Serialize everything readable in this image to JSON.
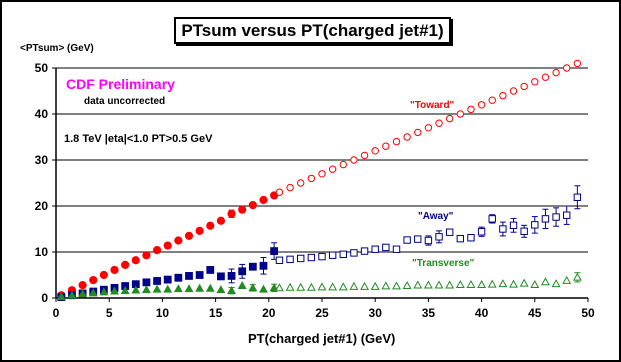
{
  "chart_data": {
    "type": "scatter",
    "title": "PTsum versus PT(charged jet#1)",
    "ylabel": "<PTsum> (GeV)",
    "xlabel": "PT(charged jet#1)  (GeV)",
    "xlim": [
      0,
      50
    ],
    "ylim": [
      0,
      50
    ],
    "xticks": [
      0,
      5,
      10,
      15,
      20,
      25,
      30,
      35,
      40,
      45,
      50
    ],
    "yticks": [
      0,
      10,
      20,
      30,
      40,
      50
    ],
    "grid": "horizontal",
    "annotations": {
      "main": "CDF Preliminary",
      "sub": "data uncorrected",
      "cut": "1.8 TeV |eta|<1.0 PT>0.5 GeV"
    },
    "series": [
      {
        "name": "\"Toward\"",
        "color": "#ff0000",
        "marker": "filled-circle",
        "x": [
          0.5,
          1.5,
          2.5,
          3.5,
          4.5,
          5.5,
          6.5,
          7.5,
          8.5,
          9.5,
          10.5,
          11.5,
          12.5,
          13.5,
          14.5,
          15.5,
          16.5,
          17.5,
          18.5,
          19.5,
          20.5
        ],
        "y": [
          0.6,
          1.7,
          2.8,
          3.9,
          5.0,
          6.1,
          7.2,
          8.2,
          9.3,
          10.4,
          11.4,
          12.5,
          13.5,
          14.6,
          15.7,
          16.8,
          18.3,
          19.2,
          20.2,
          21.3,
          22.3
        ],
        "yerr": [
          0,
          0,
          0,
          0,
          0,
          0,
          0,
          0,
          0,
          0,
          0,
          0,
          0,
          0,
          0,
          0,
          0.8,
          0,
          0,
          0,
          0
        ]
      },
      {
        "name": "\"Toward\"",
        "color": "#ff0000",
        "marker": "open-circle",
        "x": [
          21,
          22,
          23,
          24,
          25,
          26,
          27,
          28,
          29,
          30,
          31,
          32,
          33,
          34,
          35,
          36,
          37,
          38,
          39,
          40,
          41,
          42,
          43,
          44,
          45,
          46,
          47,
          48,
          49
        ],
        "y": [
          23.0,
          24.0,
          25.0,
          26.0,
          27.0,
          28.0,
          29.0,
          30.0,
          31.0,
          32.0,
          33.0,
          34.0,
          35.0,
          36.0,
          37.0,
          38.0,
          39.0,
          40.0,
          41.0,
          42.0,
          43.0,
          44.0,
          45.0,
          46.0,
          47.0,
          48.0,
          49.0,
          50.0,
          51.0
        ]
      },
      {
        "name": "\"Away\"",
        "color": "#00008b",
        "marker": "filled-square",
        "x": [
          0.5,
          1.5,
          2.5,
          3.5,
          4.5,
          5.5,
          6.5,
          7.5,
          8.5,
          9.5,
          10.5,
          11.5,
          12.5,
          13.5,
          14.5,
          15.5,
          16.5,
          17.5,
          18.5,
          19.5,
          20.5
        ],
        "y": [
          0.2,
          0.6,
          1.0,
          1.4,
          1.8,
          2.2,
          2.6,
          3.0,
          3.4,
          3.7,
          4.0,
          4.4,
          4.8,
          5.0,
          6.1,
          4.7,
          4.8,
          5.8,
          6.8,
          7.0,
          10.2
        ],
        "yerr": [
          0,
          0,
          0,
          0,
          0,
          0,
          0,
          0,
          0,
          0,
          0,
          0,
          0,
          0,
          0,
          0,
          1.5,
          1.5,
          0,
          1.8,
          1.8
        ]
      },
      {
        "name": "\"Away\"",
        "color": "#00008b",
        "marker": "open-square",
        "x": [
          21,
          22,
          23,
          24,
          25,
          26,
          27,
          28,
          29,
          30,
          31,
          32,
          33,
          34,
          35,
          36,
          37,
          38,
          39,
          40,
          41,
          42,
          43,
          44,
          45,
          46,
          47,
          48,
          49
        ],
        "y": [
          8.2,
          8.4,
          8.6,
          8.8,
          9.0,
          9.3,
          9.5,
          9.8,
          10.2,
          10.6,
          11.0,
          10.6,
          12.6,
          12.8,
          12.5,
          13.3,
          14.3,
          12.9,
          13.1,
          14.4,
          17.2,
          15.0,
          15.8,
          14.5,
          15.9,
          17.2,
          17.6,
          18.0,
          21.9
        ],
        "yerr": [
          0,
          0,
          0,
          0,
          0,
          0,
          0,
          0,
          0,
          0,
          0,
          0,
          0,
          0,
          1.0,
          1.3,
          0,
          0,
          0,
          1.0,
          0.9,
          1.5,
          1.5,
          1.3,
          1.8,
          2.1,
          2.0,
          2.0,
          2.5
        ]
      },
      {
        "name": "\"Transverse\"",
        "color": "#228b22",
        "marker": "filled-triangle",
        "x": [
          0.5,
          1.5,
          2.5,
          3.5,
          4.5,
          5.5,
          6.5,
          7.5,
          8.5,
          9.5,
          10.5,
          11.5,
          12.5,
          13.5,
          14.5,
          15.5,
          16.5,
          17.5,
          18.5,
          19.5,
          20.5
        ],
        "y": [
          0.3,
          0.6,
          0.9,
          1.1,
          1.3,
          1.5,
          1.6,
          1.7,
          1.8,
          1.9,
          1.9,
          2.0,
          2.0,
          2.1,
          2.1,
          1.8,
          1.6,
          2.7,
          2.2,
          1.9,
          2.2
        ],
        "yerr": [
          0,
          0,
          0,
          0,
          0,
          0,
          0,
          0,
          0,
          0,
          0,
          0,
          0,
          0,
          0,
          0,
          0.7,
          0,
          0.7,
          0,
          0.8
        ]
      },
      {
        "name": "\"Transverse\"",
        "color": "#228b22",
        "marker": "open-triangle",
        "x": [
          21,
          22,
          23,
          24,
          25,
          26,
          27,
          28,
          29,
          30,
          31,
          32,
          33,
          34,
          35,
          36,
          37,
          38,
          39,
          40,
          41,
          42,
          43,
          44,
          45,
          46,
          47,
          48,
          49
        ],
        "y": [
          2.2,
          2.3,
          2.3,
          2.3,
          2.4,
          2.4,
          2.4,
          2.5,
          2.5,
          2.5,
          2.6,
          2.6,
          2.7,
          2.8,
          2.8,
          2.8,
          2.8,
          2.9,
          2.9,
          2.9,
          3.0,
          3.1,
          3.0,
          3.2,
          2.9,
          3.5,
          3.1,
          3.8,
          4.5
        ],
        "yerr": [
          0,
          0,
          0,
          0,
          0,
          0,
          0,
          0,
          0,
          0,
          0,
          0,
          0,
          0,
          0,
          0,
          0,
          0,
          0,
          0,
          0,
          0,
          0,
          0,
          0,
          0,
          0,
          0,
          1.0
        ]
      }
    ]
  }
}
